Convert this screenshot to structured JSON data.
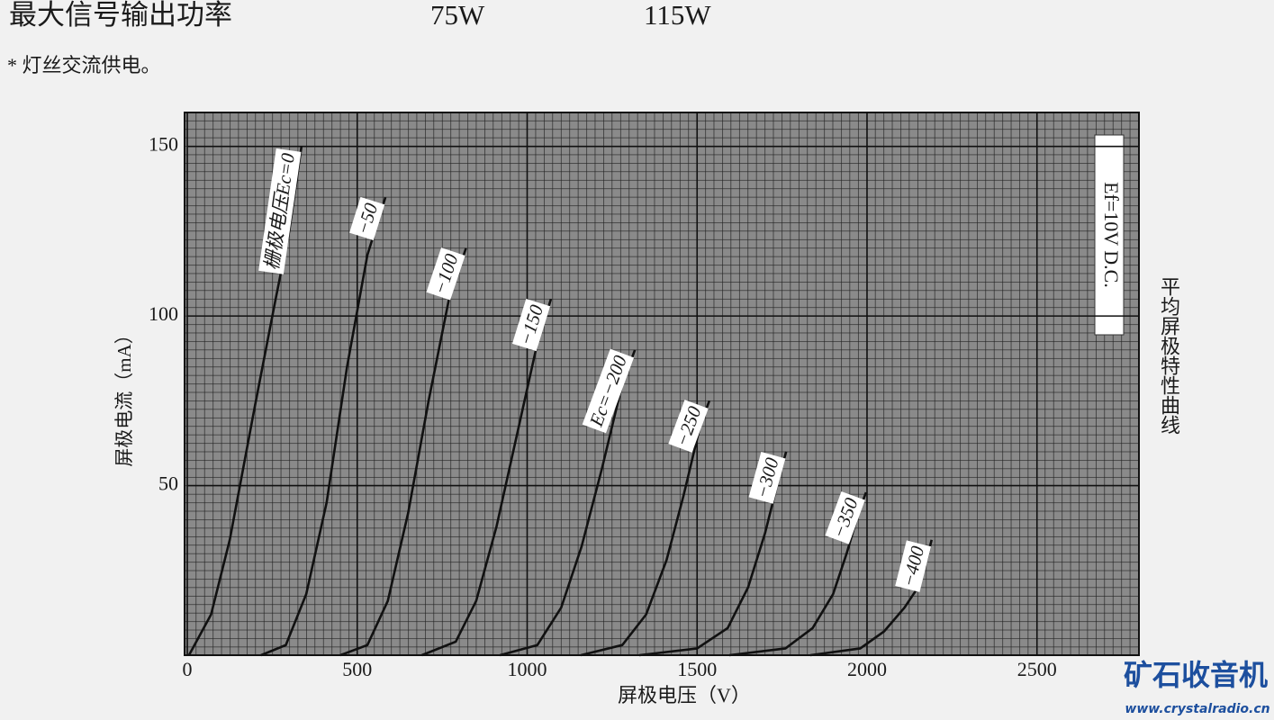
{
  "header": {
    "row_label": "最大信号输出功率",
    "value_1": "75W",
    "value_2": "115W",
    "note": "* 灯丝交流供电。"
  },
  "chart_data": {
    "type": "line",
    "title": "平均屏极特性曲线",
    "annotation": "Ef=10V D.C.",
    "x_label": "屏极电压（V）",
    "y_label": "屏极电流（mA）",
    "xlim": [
      0,
      2800
    ],
    "ylim": [
      0,
      160
    ],
    "xticks": [
      0,
      500,
      1000,
      1500,
      2000,
      2500
    ],
    "yticks": [
      50,
      100,
      150
    ],
    "grid": true,
    "color": "#111111",
    "series": [
      {
        "name": "栅极电压Ec=0",
        "x": [
          5,
          70,
          125,
          200,
          260,
          300,
          336
        ],
        "values": [
          0,
          12,
          34,
          74,
          105,
          125,
          150
        ]
      },
      {
        "name": "−50",
        "x": [
          217,
          290,
          350,
          410,
          470,
          530,
          583
        ],
        "values": [
          0,
          3,
          18,
          45,
          85,
          118,
          135
        ]
      },
      {
        "name": "−100",
        "x": [
          450,
          530,
          590,
          650,
          710,
          770,
          820
        ],
        "values": [
          0,
          3,
          16,
          42,
          75,
          105,
          120
        ]
      },
      {
        "name": "−150",
        "x": [
          690,
          790,
          850,
          910,
          970,
          1030,
          1070
        ],
        "values": [
          0,
          4,
          16,
          38,
          65,
          92,
          105
        ]
      },
      {
        "name": "Ec=−200",
        "x": [
          920,
          1030,
          1100,
          1160,
          1220,
          1280,
          1317
        ],
        "values": [
          0,
          3,
          14,
          32,
          55,
          80,
          90
        ]
      },
      {
        "name": "−250",
        "x": [
          1158,
          1280,
          1350,
          1410,
          1460,
          1510,
          1536
        ],
        "values": [
          0,
          3,
          12,
          28,
          47,
          68,
          75
        ]
      },
      {
        "name": "−300",
        "x": [
          1330,
          1500,
          1590,
          1650,
          1700,
          1740,
          1762
        ],
        "values": [
          0,
          2,
          8,
          20,
          36,
          52,
          60
        ]
      },
      {
        "name": "−350",
        "x": [
          1595,
          1760,
          1840,
          1900,
          1940,
          1975,
          1997
        ],
        "values": [
          0,
          2,
          8,
          18,
          30,
          42,
          48
        ]
      },
      {
        "name": "−400",
        "x": [
          1833,
          1980,
          2050,
          2110,
          2150,
          2175,
          2190
        ],
        "values": [
          0,
          2,
          7,
          14,
          20,
          28,
          34
        ]
      }
    ]
  },
  "watermark": {
    "brand": "矿石收音机",
    "url": "www.crystalradio.cn"
  }
}
